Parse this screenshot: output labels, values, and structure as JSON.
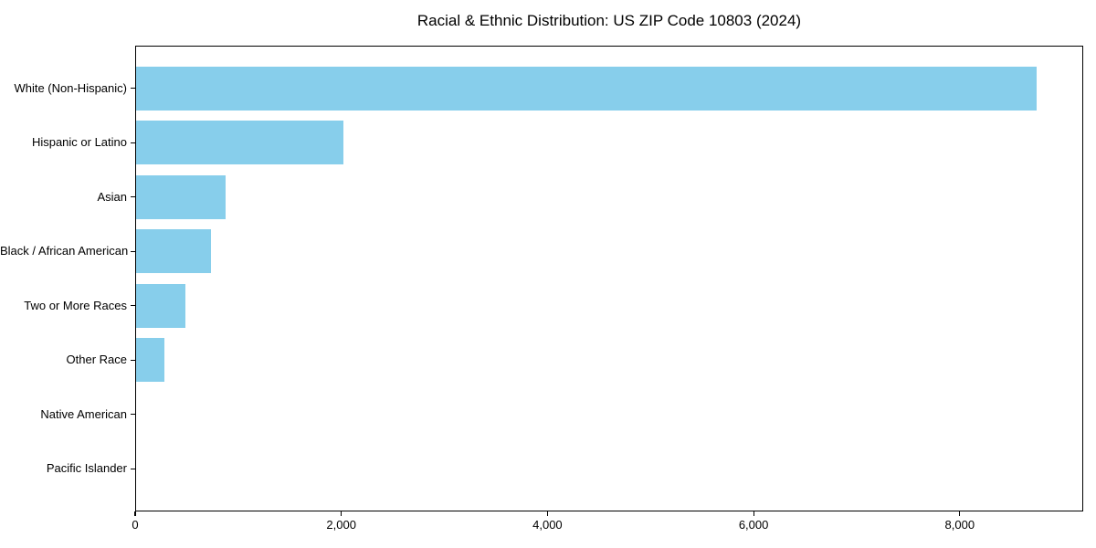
{
  "chart_data": {
    "type": "bar",
    "orientation": "horizontal",
    "title": "Racial & Ethnic Distribution: US ZIP Code 10803 (2024)",
    "categories": [
      "White (Non-Hispanic)",
      "Hispanic or Latino",
      "Asian",
      "Black / African American",
      "Two or More Races",
      "Other Race",
      "Native American",
      "Pacific Islander"
    ],
    "values": [
      8740,
      2010,
      870,
      730,
      480,
      275,
      0,
      0
    ],
    "xlabel": "",
    "ylabel": "",
    "xlim": [
      0,
      9180
    ],
    "xticks": [
      0,
      2000,
      4000,
      6000,
      8000
    ],
    "xtick_labels": [
      "0",
      "2,000",
      "4,000",
      "6,000",
      "8,000"
    ],
    "bar_color": "#87CEEB",
    "axis_color": "#000000",
    "grid": false,
    "legend_position": "none"
  }
}
